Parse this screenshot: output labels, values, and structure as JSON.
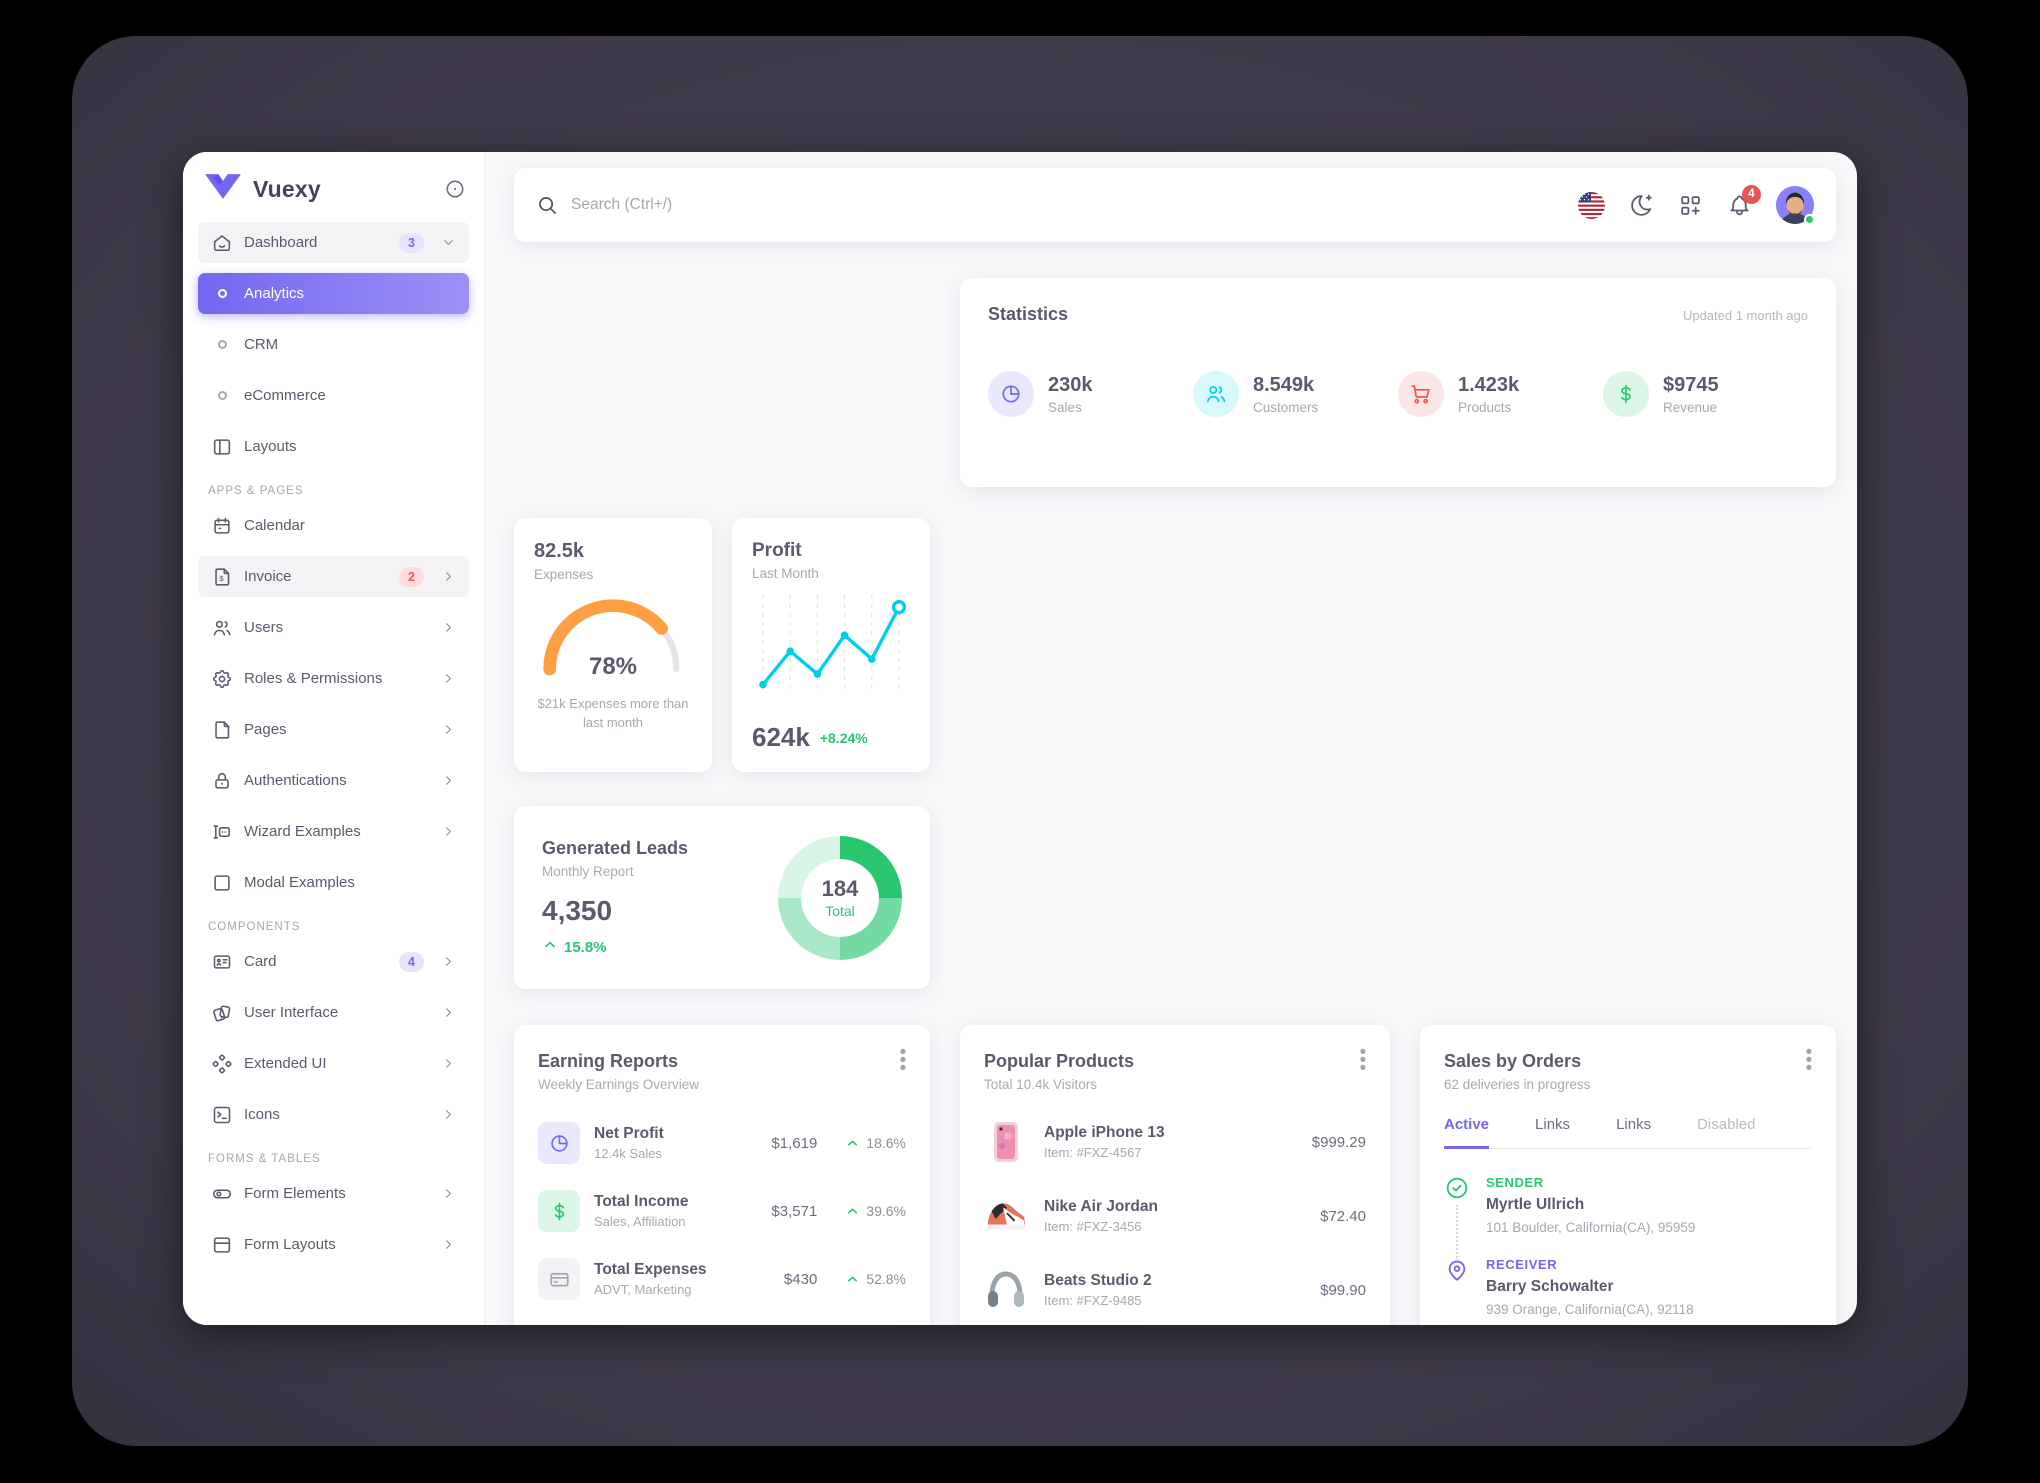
{
  "brand": {
    "name": "Vuexy"
  },
  "sidebar": {
    "items": [
      {
        "label": "Dashboard",
        "badge": "3"
      },
      {
        "label": "Analytics"
      },
      {
        "label": "CRM"
      },
      {
        "label": "eCommerce"
      },
      {
        "label": "Layouts"
      },
      {
        "label": "APPS & PAGES"
      },
      {
        "label": "Calendar"
      },
      {
        "label": "Invoice",
        "badge": "2"
      },
      {
        "label": "Users"
      },
      {
        "label": "Roles & Permissions"
      },
      {
        "label": "Pages"
      },
      {
        "label": "Authentications"
      },
      {
        "label": "Wizard Examples"
      },
      {
        "label": "Modal Examples"
      },
      {
        "label": "COMPONENTS"
      },
      {
        "label": "Card",
        "badge": "4"
      },
      {
        "label": "User Interface"
      },
      {
        "label": "Extended UI"
      },
      {
        "label": "Icons"
      },
      {
        "label": "FORMS & TABLES"
      },
      {
        "label": "Form Elements"
      },
      {
        "label": "Form Layouts"
      }
    ]
  },
  "topbar": {
    "search_placeholder": "Search (Ctrl+/)",
    "notification_count": "4"
  },
  "statistics": {
    "title": "Statistics",
    "updated": "Updated 1 month ago",
    "stats": [
      {
        "value": "230k",
        "label": "Sales",
        "icon": "chart-pie",
        "color": "#7367f0"
      },
      {
        "value": "8.549k",
        "label": "Customers",
        "icon": "users",
        "color": "#00cfe8"
      },
      {
        "value": "1.423k",
        "label": "Products",
        "icon": "shopping-cart",
        "color": "#ea5455"
      },
      {
        "value": "$9745",
        "label": "Revenue",
        "icon": "currency-dollar",
        "color": "#28c76f"
      }
    ]
  },
  "expenses": {
    "value": "82.5k",
    "label": "Expenses",
    "percent": "78%",
    "note": "$21k Expenses more than last month"
  },
  "profit": {
    "title": "Profit",
    "subtitle": "Last Month",
    "value": "624k",
    "delta": "+8.24%"
  },
  "leads": {
    "title": "Generated Leads",
    "subtitle": "Monthly Report",
    "value": "4,350",
    "delta": "15.8%",
    "total": "184",
    "total_label": "Total"
  },
  "earning_reports": {
    "title": "Earning Reports",
    "subtitle": "Weekly Earnings Overview",
    "rows": [
      {
        "title": "Net Profit",
        "subtitle": "12.4k Sales",
        "amount": "$1,619",
        "delta": "18.6%",
        "icon": "chart-pie"
      },
      {
        "title": "Total Income",
        "subtitle": "Sales, Affiliation",
        "amount": "$3,571",
        "delta": "39.6%",
        "icon": "currency-dollar"
      },
      {
        "title": "Total Expenses",
        "subtitle": "ADVT, Marketing",
        "amount": "$430",
        "delta": "52.8%",
        "icon": "credit-card"
      }
    ]
  },
  "popular_products": {
    "title": "Popular Products",
    "subtitle": "Total 10.4k Visitors",
    "rows": [
      {
        "name": "Apple iPhone 13",
        "item": "Item: #FXZ-4567",
        "price": "$999.29",
        "image": "pink-iphone"
      },
      {
        "name": "Nike Air Jordan",
        "item": "Item: #FXZ-3456",
        "price": "$72.40",
        "image": "orange-sneaker"
      },
      {
        "name": "Beats Studio 2",
        "item": "Item: #FXZ-9485",
        "price": "$99.90",
        "image": "gray-headphones"
      }
    ]
  },
  "sales_by_orders": {
    "title": "Sales by Orders",
    "subtitle": "62 deliveries in progress",
    "tabs": [
      {
        "label": "Active"
      },
      {
        "label": "Links"
      },
      {
        "label": "Links"
      },
      {
        "label": "Disabled"
      }
    ],
    "sender": {
      "label": "SENDER",
      "name": "Myrtle Ullrich",
      "address": "101 Boulder, California(CA), 95959"
    },
    "receiver": {
      "label": "RECEIVER",
      "name": "Barry Schowalter",
      "address": "939 Orange, California(CA), 92118"
    }
  },
  "colors": {
    "primary": "#7367f0",
    "success": "#28c76f",
    "danger": "#ea5455",
    "warning": "#ff9f43",
    "info": "#00cfe8",
    "heading": "#5d596c",
    "muted": "#a9a6b2"
  },
  "chart_data": [
    {
      "id": "profit-line",
      "type": "line",
      "x": [
        1,
        2,
        3,
        4,
        5,
        6
      ],
      "values": [
        5,
        43,
        17,
        61,
        34,
        93
      ],
      "ylim": [
        0,
        100
      ],
      "color": "#00cfe8",
      "grid": "dashed-vertical",
      "note": "unlabeled sparkline, last point highlighted"
    },
    {
      "id": "expenses-gauge",
      "type": "gauge",
      "percent": 78,
      "color": "#ff9f43",
      "track_color": "#e6e4ea",
      "label": "78%"
    },
    {
      "id": "leads-donut",
      "type": "pie",
      "total": 184,
      "segments": [
        {
          "value": 25,
          "color": "rgba(40,199,111,1)"
        },
        {
          "value": 25,
          "color": "rgba(40,199,111,0.65)"
        },
        {
          "value": 25,
          "color": "rgba(40,199,111,0.4)"
        },
        {
          "value": 25,
          "color": "rgba(40,199,111,0.18)"
        }
      ]
    }
  ]
}
